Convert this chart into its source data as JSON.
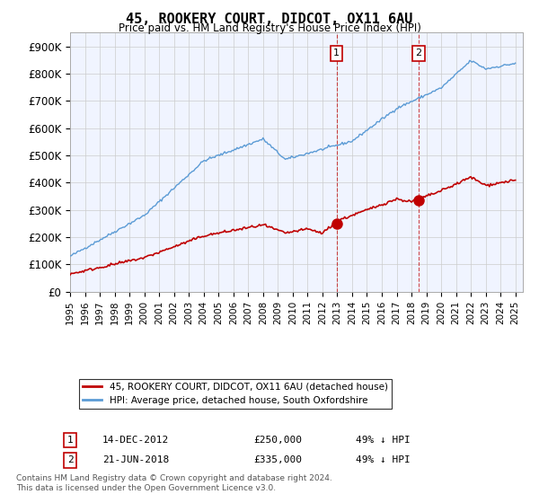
{
  "title": "45, ROOKERY COURT, DIDCOT, OX11 6AU",
  "subtitle": "Price paid vs. HM Land Registry's House Price Index (HPI)",
  "ylabel_ticks": [
    "£0",
    "£100K",
    "£200K",
    "£300K",
    "£400K",
    "£500K",
    "£600K",
    "£700K",
    "£800K",
    "£900K"
  ],
  "ytick_values": [
    0,
    100000,
    200000,
    300000,
    400000,
    500000,
    600000,
    700000,
    800000,
    900000
  ],
  "ylim": [
    0,
    950000
  ],
  "xlim_start": 1995.0,
  "xlim_end": 2025.5,
  "hpi_color": "#5b9bd5",
  "price_color": "#c00000",
  "sale1_year": 2012.95,
  "sale1_price": 250000,
  "sale2_year": 2018.47,
  "sale2_price": 335000,
  "legend_label1": "45, ROOKERY COURT, DIDCOT, OX11 6AU (detached house)",
  "legend_label2": "HPI: Average price, detached house, South Oxfordshire",
  "annotation1_label": "1",
  "annotation1_date": "14-DEC-2012",
  "annotation1_price": "£250,000",
  "annotation1_pct": "49% ↓ HPI",
  "annotation2_label": "2",
  "annotation2_date": "21-JUN-2018",
  "annotation2_price": "£335,000",
  "annotation2_pct": "49% ↓ HPI",
  "footnote": "Contains HM Land Registry data © Crown copyright and database right 2024.\nThis data is licensed under the Open Government Licence v3.0.",
  "background_color": "#f0f4ff",
  "plot_bg": "#ffffff"
}
